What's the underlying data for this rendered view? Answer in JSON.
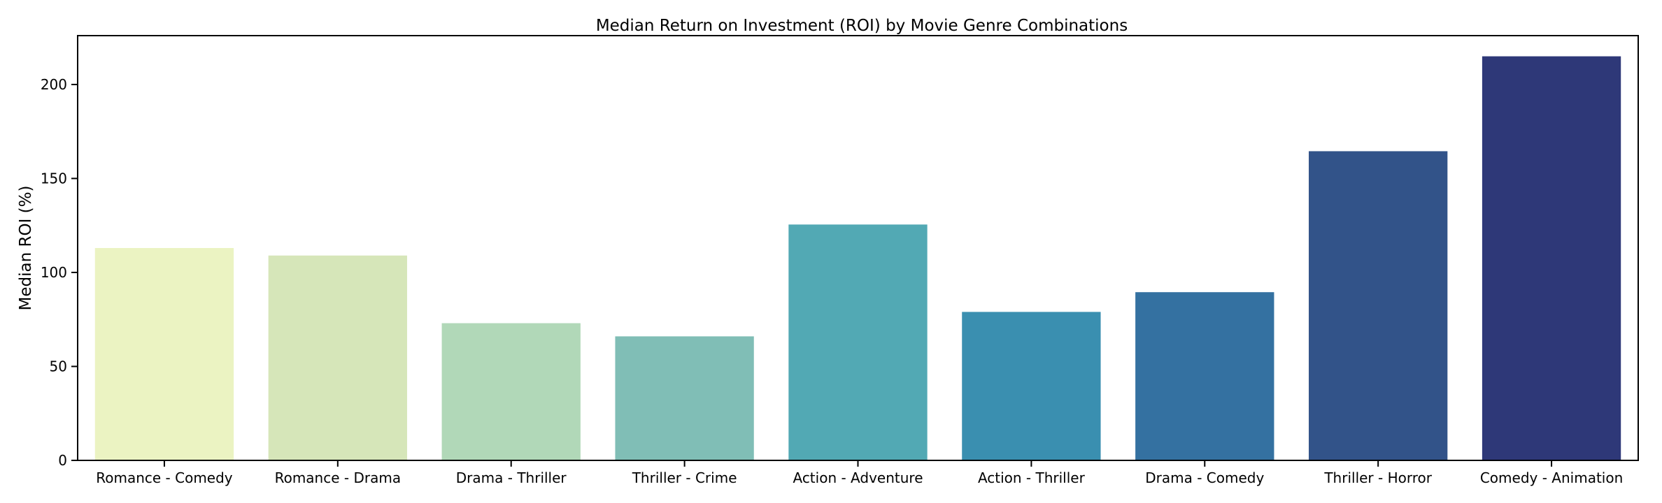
{
  "chart_data": {
    "type": "bar",
    "title": "Median Return on Investment (ROI) by Movie Genre Combinations",
    "xlabel": "",
    "ylabel": "Median ROI (%)",
    "categories": [
      "Romance - Comedy",
      "Romance - Drama",
      "Drama - Thriller",
      "Thriller - Crime",
      "Action - Adventure",
      "Action - Thriller",
      "Drama - Comedy",
      "Thriller - Horror",
      "Comedy - Animation"
    ],
    "values": [
      113,
      109,
      73,
      66,
      125.5,
      79,
      89.5,
      164.5,
      215
    ],
    "colors": [
      "#ebf3c2",
      "#d6e6b9",
      "#b1d8b8",
      "#80beb6",
      "#52a9b4",
      "#3a8fb0",
      "#3471a1",
      "#325389",
      "#2e3878"
    ],
    "ylim": [
      0,
      226
    ],
    "yticks": [
      0,
      50,
      100,
      150,
      200
    ],
    "grid": false,
    "legend": "none"
  }
}
